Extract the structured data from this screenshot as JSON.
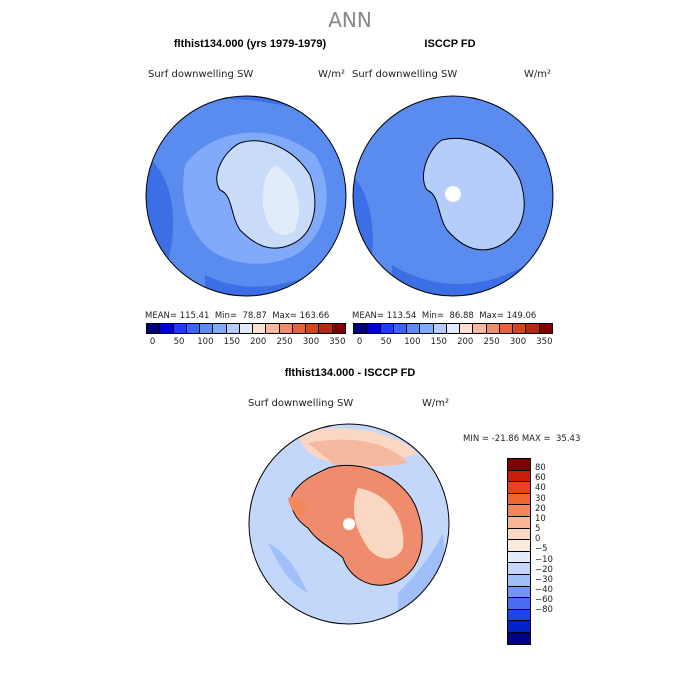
{
  "figure_title": "ANN",
  "panels": {
    "model": {
      "title": "flthist134.000 (yrs 1979-1979)",
      "variable": "Surf downwelling SW",
      "units": "W/m²",
      "stats": "MEAN= 115.41  Min=  78.87  Max= 163.66"
    },
    "obs": {
      "title": "ISCCP FD",
      "variable": "Surf downwelling SW",
      "units": "W/m²",
      "stats": "MEAN= 113.54  Min=  86.88  Max= 149.06"
    },
    "diff": {
      "title": "flthist134.000 - ISCCP FD",
      "variable": "Surf downwelling SW",
      "units": "W/m²",
      "stats": "MIN = -21.86 MAX =  35.43"
    }
  },
  "colorbar_abs": {
    "colors": [
      "#00007f",
      "#0000c8",
      "#1e3cf0",
      "#3c64f5",
      "#5a8cfa",
      "#82aafa",
      "#b4cdfa",
      "#e1ebfa",
      "#fae1d2",
      "#f5b9a0",
      "#f08c6e",
      "#e6643c",
      "#d2461e",
      "#b42814",
      "#820000"
    ],
    "ticks": [
      "0",
      "50",
      "100",
      "150",
      "200",
      "250",
      "300",
      "350"
    ]
  },
  "colorbar_diff": {
    "colors": [
      "#800000",
      "#c81e0a",
      "#e6461e",
      "#f06432",
      "#f5875a",
      "#fab496",
      "#fad7c3",
      "#fcece0",
      "#e1ebfa",
      "#c3d7fa",
      "#a0bef8",
      "#7396f5",
      "#4b6ef0",
      "#1e46e6",
      "#0020c8",
      "#000080"
    ],
    "ticks": [
      "80",
      "60",
      "40",
      "30",
      "20",
      "10",
      "5",
      "0",
      "−5",
      "−10",
      "−20",
      "−30",
      "−40",
      "−60",
      "−80"
    ]
  },
  "map_colors": {
    "ocean_mid": "#5a8cf0",
    "ocean_deep": "#3c6ee6",
    "land_model": "#c8dcfa",
    "land_obs": "#b4cdfa",
    "diff_ocean": "#c3d7fa",
    "diff_warm": "#f08c6e",
    "diff_light": "#fad7c3"
  }
}
